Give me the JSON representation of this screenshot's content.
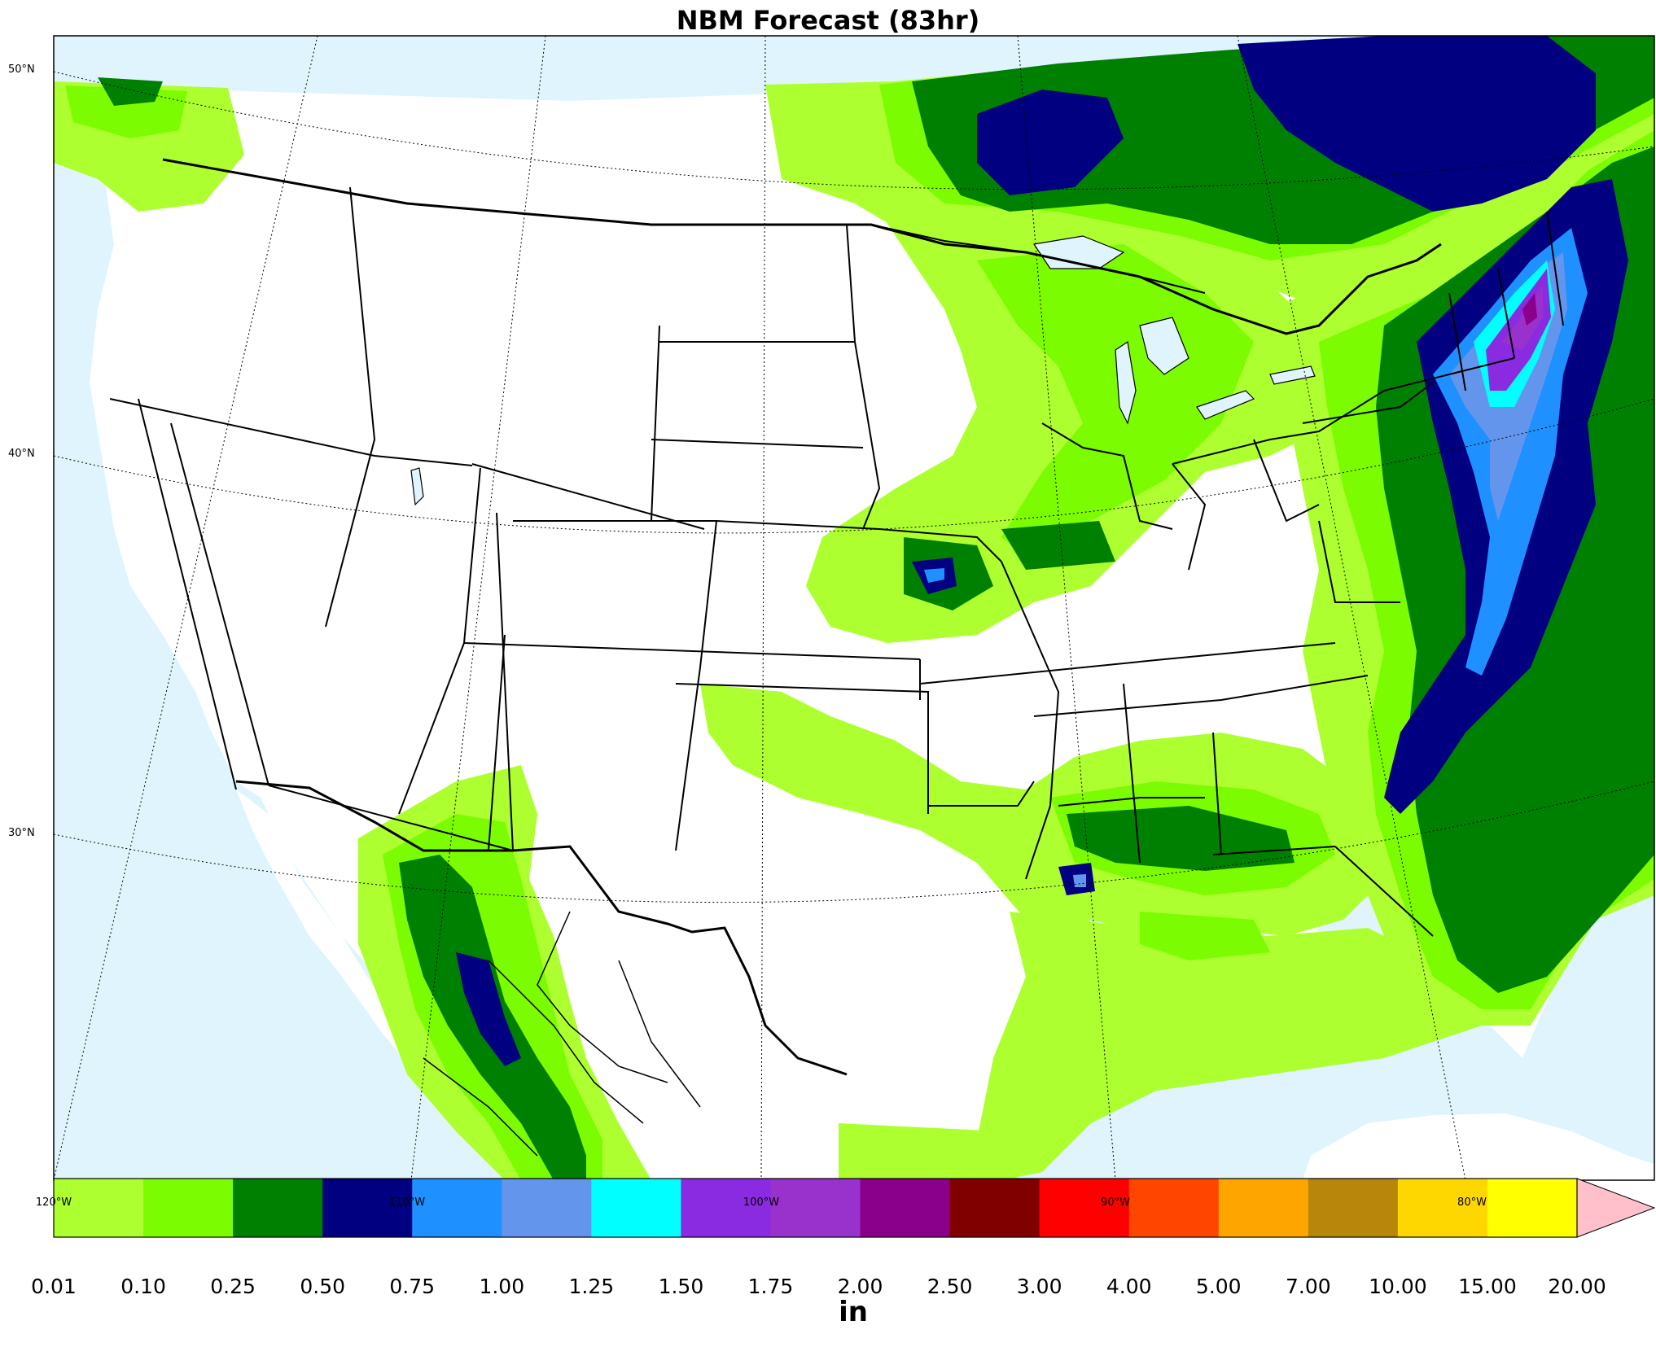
{
  "title": "NBM Forecast (83hr)",
  "lat_labels": [
    "50°N",
    "40°N",
    "30°N"
  ],
  "lon_labels": [
    "120°W",
    "110°W",
    "100°W",
    "90°W",
    "80°W"
  ],
  "colorbar": {
    "unit": "in",
    "ticks": [
      "0.01",
      "0.10",
      "0.25",
      "0.50",
      "0.75",
      "1.00",
      "1.25",
      "1.50",
      "1.75",
      "2.00",
      "2.50",
      "3.00",
      "4.00",
      "5.00",
      "7.00",
      "10.00",
      "15.00",
      "20.00"
    ],
    "colors": [
      "#adff2f",
      "#7cfc00",
      "#008000",
      "#000080",
      "#1e90ff",
      "#6495ed",
      "#00ffff",
      "#8a2be2",
      "#9932cc",
      "#8b008b",
      "#800000",
      "#ff0000",
      "#ff4500",
      "#ffa500",
      "#b8860b",
      "#ffd700",
      "#ffff00"
    ],
    "extend_color": "#ffc0cb"
  },
  "colors": {
    "ocean": "#dff4fc",
    "land": "#ffffff",
    "border": "#000000"
  }
}
